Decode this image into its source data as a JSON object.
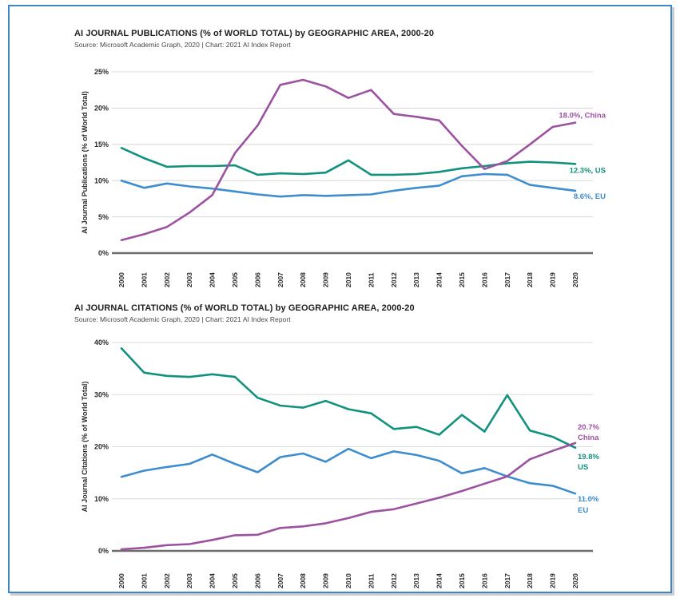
{
  "page": {
    "border_color": "#3E86C6",
    "background": "#ffffff"
  },
  "chart_data": [
    {
      "type": "line",
      "title": "AI JOURNAL PUBLICATIONS (% of WORLD TOTAL) by GEOGRAPHIC AREA, 2000-20",
      "source": "Source: Microsoft Academic Graph, 2020 | Chart: 2021 AI Index Report",
      "ylabel": "AI Journal Publications (% of World Total)",
      "xlabel": "",
      "grid": true,
      "legend_position": "right-end-labels",
      "ylim": [
        0,
        25
      ],
      "y_tick_step": 5,
      "y_ticks": [
        "0%",
        "5%",
        "10%",
        "15%",
        "20%",
        "25%"
      ],
      "x": [
        "2000",
        "2001",
        "2002",
        "2003",
        "2004",
        "2005",
        "2006",
        "2007",
        "2008",
        "2009",
        "2010",
        "2011",
        "2012",
        "2013",
        "2014",
        "2015",
        "2016",
        "2017",
        "2018",
        "2019",
        "2020"
      ],
      "series": [
        {
          "name": "US",
          "color": "#12917F",
          "values": [
            14.5,
            13.1,
            11.9,
            12.0,
            12.0,
            12.1,
            10.8,
            11.0,
            10.9,
            11.1,
            12.8,
            10.8,
            10.8,
            10.9,
            11.2,
            11.7,
            12.0,
            12.4,
            12.6,
            12.5,
            12.3
          ],
          "end_label": {
            "lines": [
              "12.3%, US"
            ],
            "dy": 11,
            "line_height": 13
          }
        },
        {
          "name": "EU",
          "color": "#3E8DCE",
          "values": [
            10.0,
            9.0,
            9.6,
            9.2,
            8.9,
            8.5,
            8.1,
            7.8,
            8.0,
            7.9,
            8.0,
            8.1,
            8.6,
            9.0,
            9.3,
            10.6,
            10.9,
            10.8,
            9.4,
            9.0,
            8.6
          ],
          "end_label": {
            "lines": [
              "8.6%, EU"
            ],
            "dy": 10,
            "line_height": 13
          }
        },
        {
          "name": "China",
          "color": "#9C51A1",
          "values": [
            1.8,
            2.6,
            3.6,
            5.6,
            8.0,
            13.8,
            17.6,
            23.2,
            23.9,
            23.0,
            21.4,
            22.5,
            19.2,
            18.8,
            18.3,
            14.8,
            11.6,
            12.7,
            15.0,
            17.4,
            18.0
          ],
          "end_label": {
            "lines": [
              "18.0%, China"
            ],
            "dy": -6,
            "line_height": 13
          }
        }
      ]
    },
    {
      "type": "line",
      "title": "AI JOURNAL CITATIONS (% of WORLD TOTAL) by GEOGRAPHIC AREA, 2000-20",
      "source": "Source: Microsoft Academic Graph, 2020 | Chart: 2021 AI Index Report",
      "ylabel": "AI Journal Citations (% of World Total)",
      "xlabel": "",
      "grid": true,
      "legend_position": "right-end-labels",
      "ylim": [
        0,
        40
      ],
      "y_tick_step": 10,
      "y_ticks": [
        "0%",
        "10%",
        "20%",
        "30%",
        "40%"
      ],
      "x": [
        "2000",
        "2001",
        "2002",
        "2003",
        "2004",
        "2005",
        "2006",
        "2007",
        "2008",
        "2009",
        "2010",
        "2011",
        "2012",
        "2013",
        "2014",
        "2015",
        "2016",
        "2017",
        "2018",
        "2019",
        "2020"
      ],
      "series": [
        {
          "name": "US",
          "color": "#12917F",
          "values": [
            38.9,
            34.2,
            33.6,
            33.4,
            33.9,
            33.4,
            29.4,
            27.9,
            27.5,
            28.8,
            27.2,
            26.4,
            23.4,
            23.8,
            22.3,
            26.1,
            22.9,
            29.9,
            23.1,
            21.9,
            19.8
          ],
          "end_label": {
            "lines": [
              "19.8%",
              "US"
            ],
            "dy": 14,
            "line_height": 13
          }
        },
        {
          "name": "EU",
          "color": "#3E8DCE",
          "values": [
            14.2,
            15.4,
            16.1,
            16.7,
            18.5,
            16.7,
            15.1,
            18.0,
            18.7,
            17.1,
            19.6,
            17.8,
            19.1,
            18.4,
            17.3,
            14.9,
            15.9,
            14.3,
            13.0,
            12.5,
            11.0
          ],
          "end_label": {
            "lines": [
              "11.0%",
              "EU"
            ],
            "dy": 10,
            "line_height": 14
          }
        },
        {
          "name": "China",
          "color": "#9C51A1",
          "values": [
            0.3,
            0.6,
            1.1,
            1.3,
            2.1,
            3.0,
            3.1,
            4.4,
            4.7,
            5.3,
            6.3,
            7.5,
            8.0,
            9.1,
            10.2,
            11.5,
            12.9,
            14.3,
            17.6,
            19.2,
            20.7
          ],
          "end_label": {
            "lines": [
              "20.7%",
              "China"
            ],
            "dy": -17,
            "line_height": 13
          }
        }
      ]
    }
  ],
  "style": {
    "gridline_color": "#DCDCDC",
    "zero_axis_color": "#6E6E6E",
    "tick_text_color": "#2b2b2b"
  }
}
